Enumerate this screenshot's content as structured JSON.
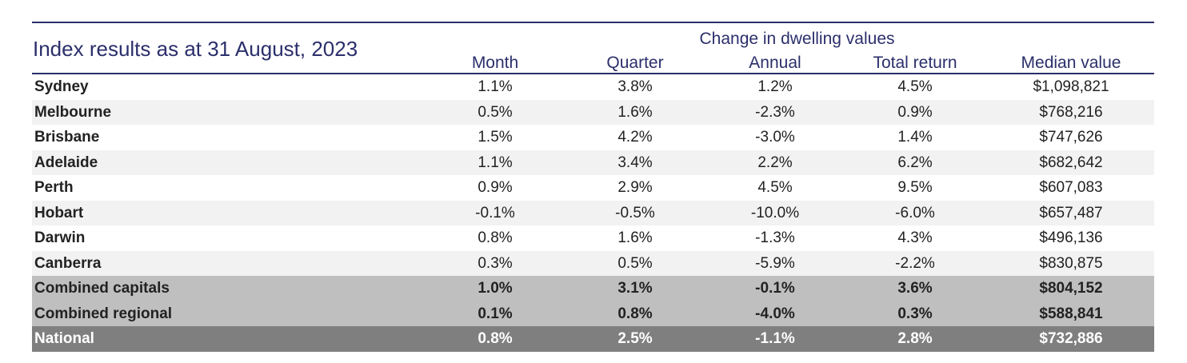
{
  "title": "Index results as at 31 August, 2023",
  "group_header": "Change in dwelling values",
  "columns": [
    "Month",
    "Quarter",
    "Annual",
    "Total return",
    "Median value"
  ],
  "rows": [
    {
      "region": "Sydney",
      "month": "1.1%",
      "quarter": "3.8%",
      "annual": "1.2%",
      "total_return": "4.5%",
      "median_value": "$1,098,821"
    },
    {
      "region": "Melbourne",
      "month": "0.5%",
      "quarter": "1.6%",
      "annual": "-2.3%",
      "total_return": "0.9%",
      "median_value": "$768,216"
    },
    {
      "region": "Brisbane",
      "month": "1.5%",
      "quarter": "4.2%",
      "annual": "-3.0%",
      "total_return": "1.4%",
      "median_value": "$747,626"
    },
    {
      "region": "Adelaide",
      "month": "1.1%",
      "quarter": "3.4%",
      "annual": "2.2%",
      "total_return": "6.2%",
      "median_value": "$682,642"
    },
    {
      "region": "Perth",
      "month": "0.9%",
      "quarter": "2.9%",
      "annual": "4.5%",
      "total_return": "9.5%",
      "median_value": "$607,083"
    },
    {
      "region": "Hobart",
      "month": "-0.1%",
      "quarter": "-0.5%",
      "annual": "-10.0%",
      "total_return": "-6.0%",
      "median_value": "$657,487"
    },
    {
      "region": "Darwin",
      "month": "0.8%",
      "quarter": "1.6%",
      "annual": "-1.3%",
      "total_return": "4.3%",
      "median_value": "$496,136"
    },
    {
      "region": "Canberra",
      "month": "0.3%",
      "quarter": "0.5%",
      "annual": "-5.9%",
      "total_return": "-2.2%",
      "median_value": "$830,875"
    },
    {
      "region": "Combined capitals",
      "month": "1.0%",
      "quarter": "3.1%",
      "annual": "-0.1%",
      "total_return": "3.6%",
      "median_value": "$804,152"
    },
    {
      "region": "Combined regional",
      "month": "0.1%",
      "quarter": "0.8%",
      "annual": "-4.0%",
      "total_return": "0.3%",
      "median_value": "$588,841"
    },
    {
      "region": "National",
      "month": "0.8%",
      "quarter": "2.5%",
      "annual": "-1.1%",
      "total_return": "2.8%",
      "median_value": "$732,886"
    }
  ],
  "colors": {
    "header_text": "#2b2f6b",
    "rule": "#2b2f6b",
    "row_shade": "#f2f2f2",
    "combined_bg": "#bfbfbf",
    "national_bg": "#7f7f7f"
  }
}
